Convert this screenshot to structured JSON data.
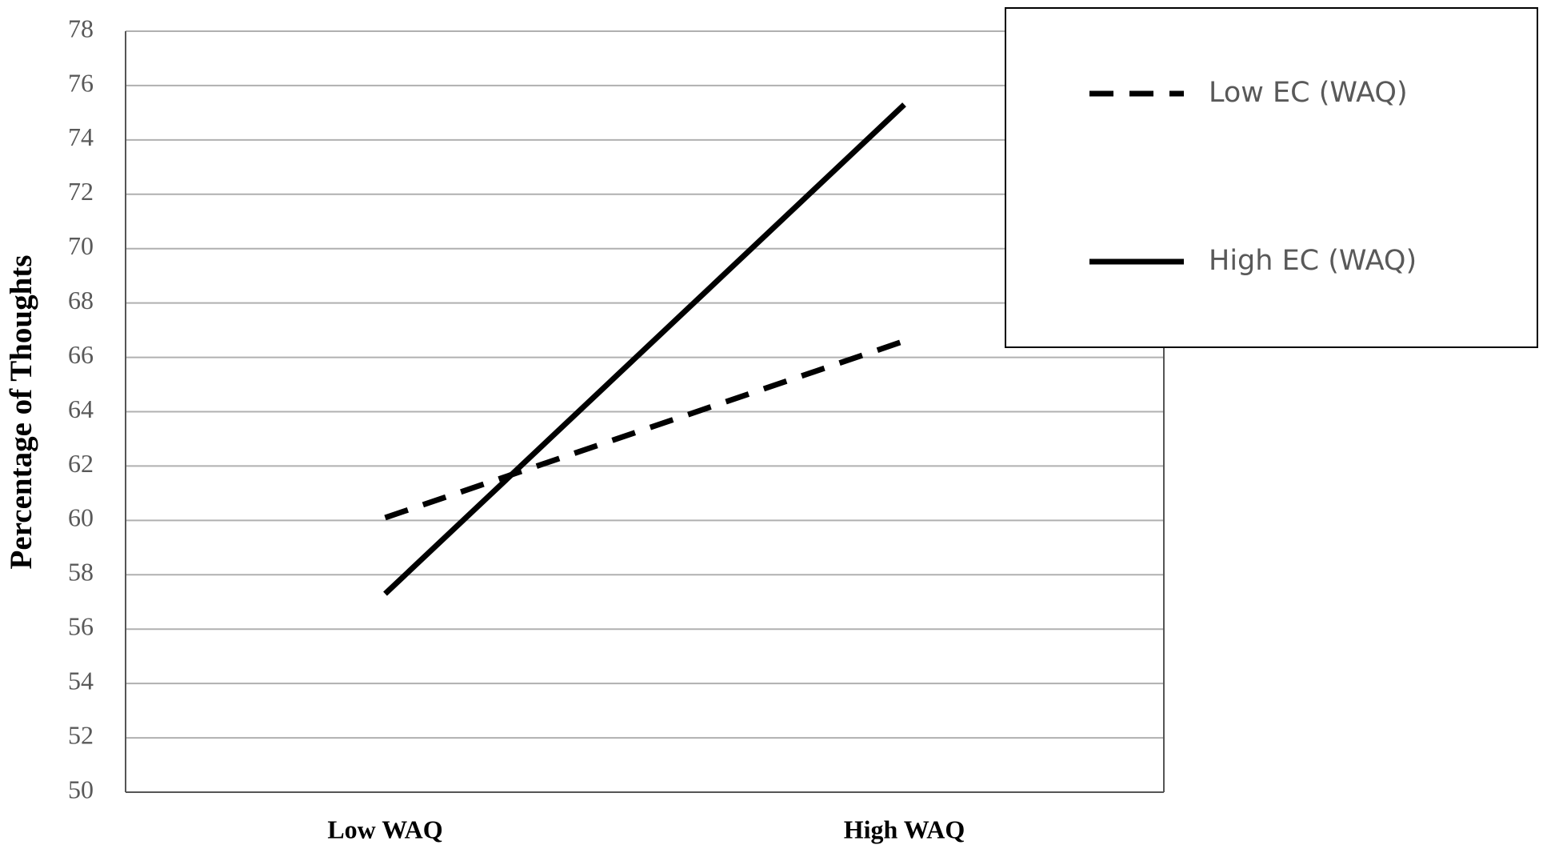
{
  "chart_data": {
    "type": "line",
    "y_label": "Percentage of Thoughts",
    "categories": [
      "Low WAQ",
      "High WAQ"
    ],
    "series": [
      {
        "name": "Low EC (WAQ)",
        "color": "#000000",
        "dash": true,
        "values": [
          60.1,
          66.6
        ]
      },
      {
        "name": "High EC (WAQ)",
        "color": "#000000",
        "dash": false,
        "values": [
          57.3,
          75.3
        ]
      }
    ],
    "ylim": [
      50,
      78
    ],
    "yticks": [
      50,
      52,
      54,
      56,
      58,
      60,
      62,
      64,
      66,
      68,
      70,
      72,
      74,
      76,
      78
    ],
    "grid": true,
    "legend": "upper right"
  }
}
